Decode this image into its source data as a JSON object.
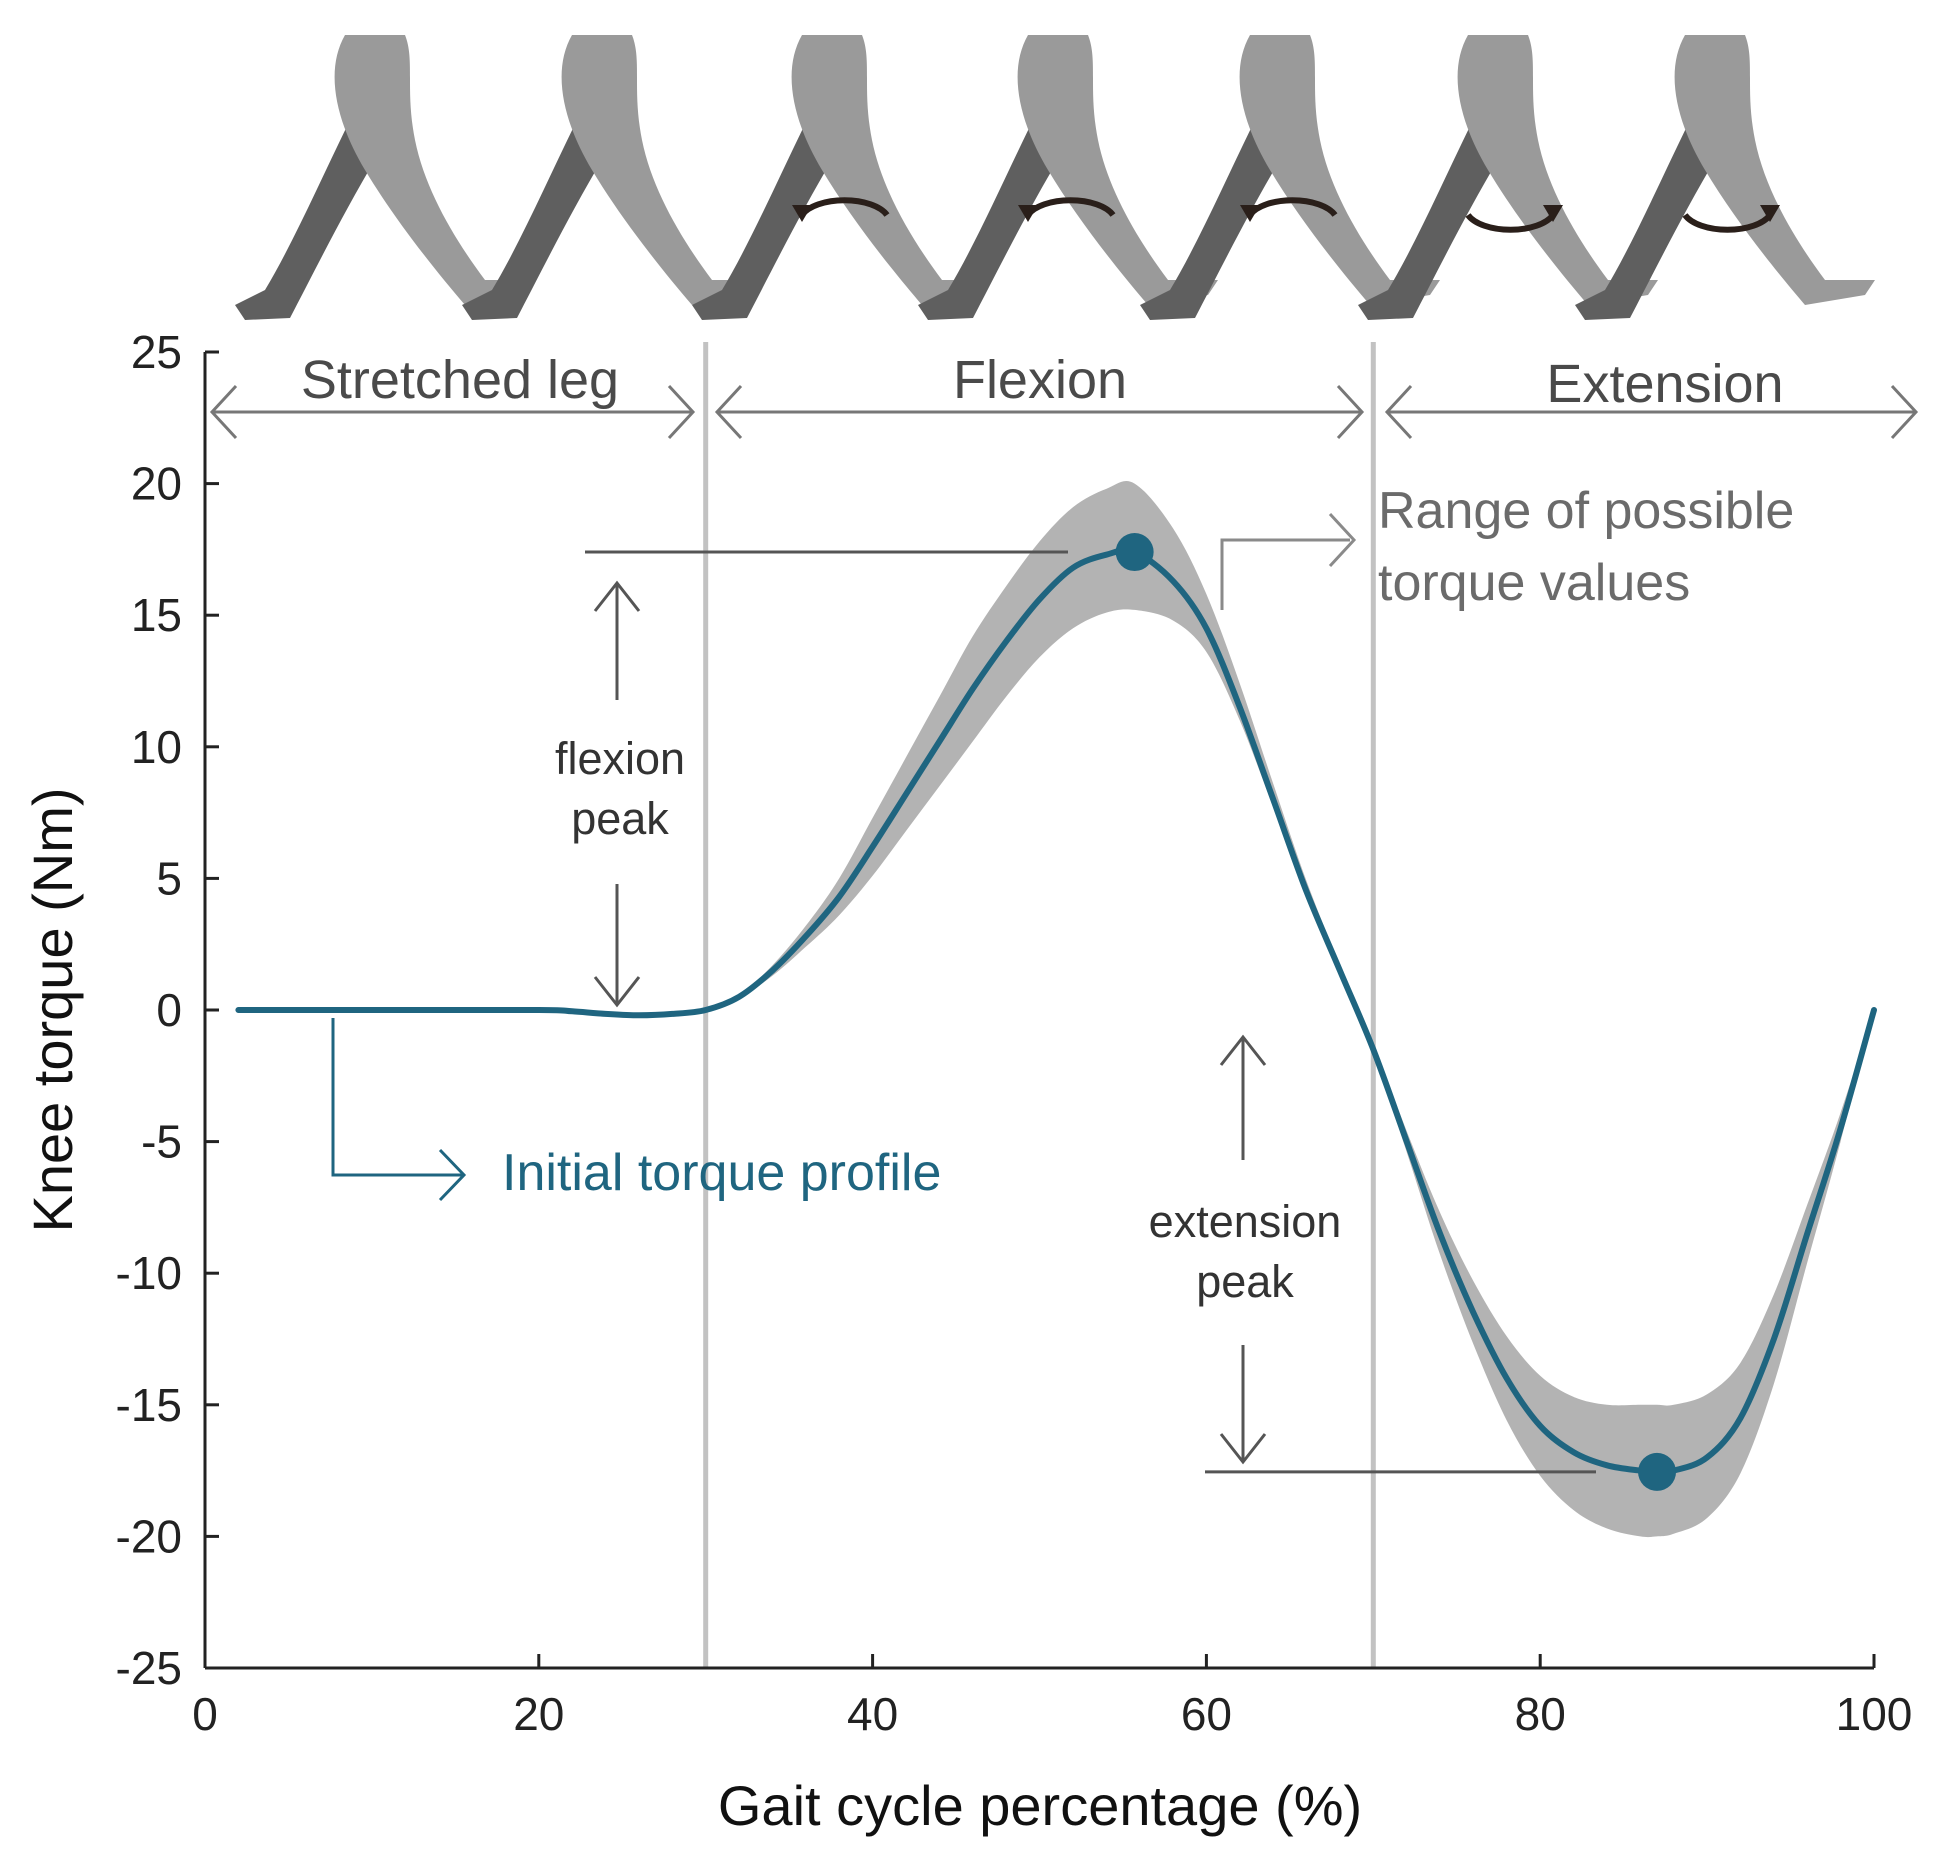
{
  "chart_data": {
    "type": "line",
    "xlabel": "Gait cycle percentage (%)",
    "ylabel": "Knee torque (Nm)",
    "xlim": [
      0,
      100
    ],
    "ylim": [
      -25,
      25
    ],
    "xticks": [
      0,
      20,
      40,
      60,
      80,
      100
    ],
    "yticks": [
      25,
      20,
      15,
      10,
      5,
      0,
      -5,
      -10,
      -15,
      -20,
      -25
    ],
    "grid": false,
    "colors": {
      "profile": "#1f6580",
      "band": "#b3b3b3",
      "phase_line": "#c2c2c2",
      "annotation": "#555555"
    },
    "series": [
      {
        "x": [
          2,
          10,
          20,
          22,
          24,
          26,
          28,
          30,
          32,
          34,
          36,
          38,
          40,
          42,
          44,
          46,
          48,
          50,
          52,
          54,
          55.7,
          58,
          60,
          62,
          64,
          66,
          68,
          70,
          72,
          74,
          76,
          78,
          80,
          82,
          84,
          86,
          87,
          88,
          90,
          92,
          94,
          96,
          98,
          100
        ],
        "y": [
          0,
          0,
          0,
          -0.05,
          -0.15,
          -0.2,
          -0.15,
          0,
          0.5,
          1.5,
          2.8,
          4.3,
          6.2,
          8.2,
          10.2,
          12.2,
          14,
          15.6,
          16.8,
          17.3,
          17.4,
          16.3,
          14.5,
          11.5,
          8.0,
          4.5,
          1.5,
          -1.5,
          -5.0,
          -8.5,
          -11.5,
          -14.0,
          -15.8,
          -16.8,
          -17.3,
          -17.5,
          -17.55,
          -17.5,
          -17.0,
          -15.5,
          -12.5,
          -8.5,
          -4.5,
          0
        ],
        "band_lower": [
          0,
          0,
          0,
          -0.05,
          -0.15,
          -0.2,
          -0.15,
          0,
          0.45,
          1.3,
          2.4,
          3.6,
          5.1,
          6.8,
          8.5,
          10.2,
          11.9,
          13.4,
          14.5,
          15.1,
          15.2,
          14.8,
          13.6,
          11.0,
          7.7,
          4.3,
          1.3,
          -1.7,
          -5.4,
          -9.3,
          -12.7,
          -15.6,
          -17.7,
          -19.0,
          -19.7,
          -20.0,
          -20.0,
          -19.9,
          -19.3,
          -17.6,
          -14.2,
          -9.6,
          -5.0,
          0
        ],
        "band_upper": [
          0,
          0,
          0,
          -0.05,
          -0.15,
          -0.2,
          -0.15,
          0,
          0.55,
          1.7,
          3.2,
          5.0,
          7.3,
          9.6,
          11.9,
          14.2,
          16.1,
          17.8,
          19.1,
          19.8,
          20.0,
          18.3,
          15.8,
          12.4,
          8.6,
          4.9,
          1.7,
          -1.3,
          -4.6,
          -7.7,
          -10.3,
          -12.4,
          -13.9,
          -14.7,
          -15.0,
          -15.0,
          -15.0,
          -15.0,
          -14.6,
          -13.4,
          -10.8,
          -7.4,
          -3.9,
          0
        ]
      }
    ],
    "markers": [
      {
        "x": 55.7,
        "y": 17.4
      },
      {
        "x": 87,
        "y": -17.55
      }
    ],
    "phase_boundaries": [
      30,
      70
    ],
    "phases": [
      {
        "label": "Stretched leg",
        "start": 0,
        "end": 30
      },
      {
        "label": "Flexion",
        "start": 30,
        "end": 70
      },
      {
        "label": "Extension",
        "start": 70,
        "end": 100
      }
    ],
    "annotations": {
      "flexion_peak": [
        "flexion",
        "peak"
      ],
      "extension_peak": [
        "extension",
        "peak"
      ],
      "range_label": [
        "Range of possible",
        "torque values"
      ],
      "profile_label": "Initial torque profile"
    }
  }
}
